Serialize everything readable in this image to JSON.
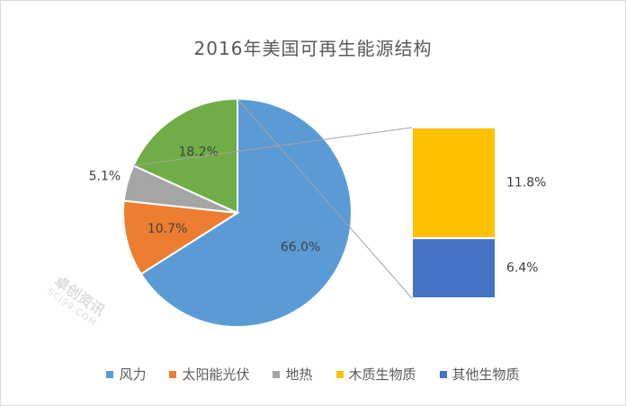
{
  "chart_data": {
    "type": "pie",
    "title": "2016年美国可再生能源结构",
    "slices": [
      {
        "name": "风力",
        "value": 66.0,
        "label": "66.0%",
        "color": "#5B9BD5"
      },
      {
        "name": "太阳能光伏",
        "value": 10.7,
        "label": "10.7%",
        "color": "#ED7D31"
      },
      {
        "name": "地热",
        "value": 5.1,
        "label": "5.1%",
        "color": "#A5A5A5"
      },
      {
        "name": "生物质",
        "value": 18.2,
        "label": "18.2%",
        "color": "#70AD47",
        "breakout": true
      }
    ],
    "breakout": {
      "type": "stacked-bar",
      "parts": [
        {
          "name": "木质生物质",
          "value": 11.8,
          "label": "11.8%",
          "color": "#FFC000"
        },
        {
          "name": "其他生物质",
          "value": 6.4,
          "label": "6.4%",
          "color": "#4472C4"
        }
      ]
    },
    "legend": {
      "placement": "bottom",
      "items": [
        {
          "name": "风力",
          "color": "#5B9BD5"
        },
        {
          "name": "太阳能光伏",
          "color": "#ED7D31"
        },
        {
          "name": "地热",
          "color": "#A5A5A5"
        },
        {
          "name": "木质生物质",
          "color": "#FFC000"
        },
        {
          "name": "其他生物质",
          "color": "#4472C4"
        }
      ]
    }
  },
  "watermark": {
    "brand": "卓创资讯",
    "site": "SCI99.COM"
  }
}
